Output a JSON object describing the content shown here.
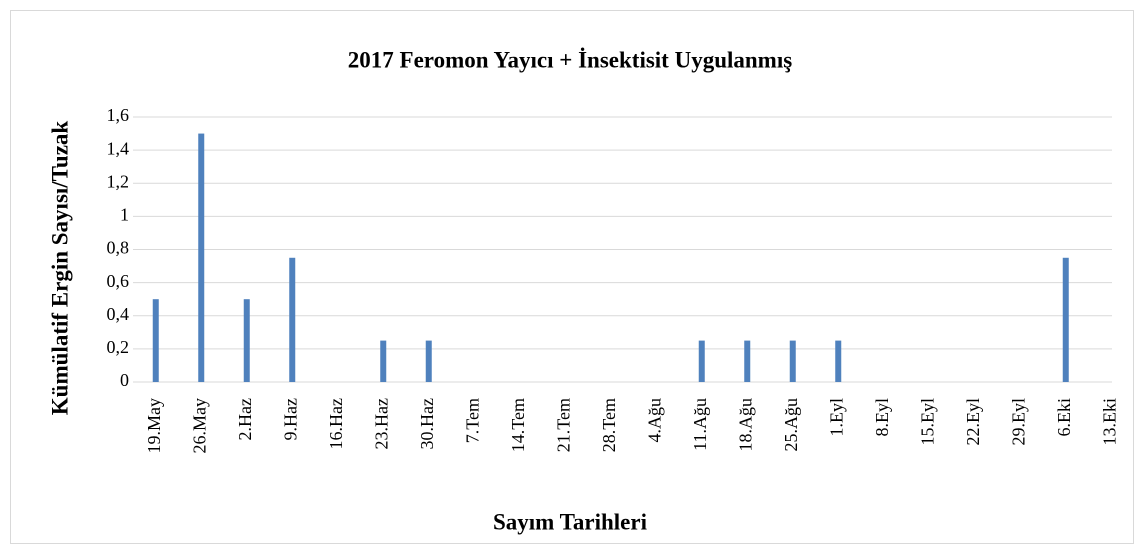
{
  "chart_data": {
    "type": "bar",
    "title": "2017 Feromon Yayıcı + İnsektisit Uygulanmış",
    "x_label": "Sayım Tarihleri",
    "y_label": "Kümülatif Ergin Sayısı/Tuzak",
    "categories": [
      "19.May",
      "26.May",
      "2.Haz",
      "9.Haz",
      "16.Haz",
      "23.Haz",
      "30.Haz",
      "7.Tem",
      "14.Tem",
      "21.Tem",
      "28.Tem",
      "4.Ağu",
      "11.Ağu",
      "18.Ağu",
      "25.Ağu",
      "1.Eyl",
      "8.Eyl",
      "15.Eyl",
      "22.Eyl",
      "29.Eyl",
      "6.Eki",
      "13.Eki"
    ],
    "values": [
      0.5,
      1.5,
      0.5,
      0.75,
      0,
      0.25,
      0.25,
      0,
      0,
      0,
      0,
      0,
      0.25,
      0.25,
      0.25,
      0.25,
      0,
      0,
      0,
      0,
      0.75,
      0
    ],
    "color": "#4f81bd",
    "ylim": [
      0,
      1.6
    ],
    "yticks": [
      0,
      {
        "value": 0.2,
        "label": "0,2"
      },
      {
        "value": 0.4,
        "label": "0,4"
      },
      {
        "value": 0.6,
        "label": "0,6"
      },
      {
        "value": 0.8,
        "label": "0,8"
      },
      1,
      {
        "value": 1.2,
        "label": "1,2"
      },
      {
        "value": 1.4,
        "label": "1,4"
      },
      {
        "value": 1.6,
        "label": "1,6"
      }
    ],
    "grid": true
  }
}
